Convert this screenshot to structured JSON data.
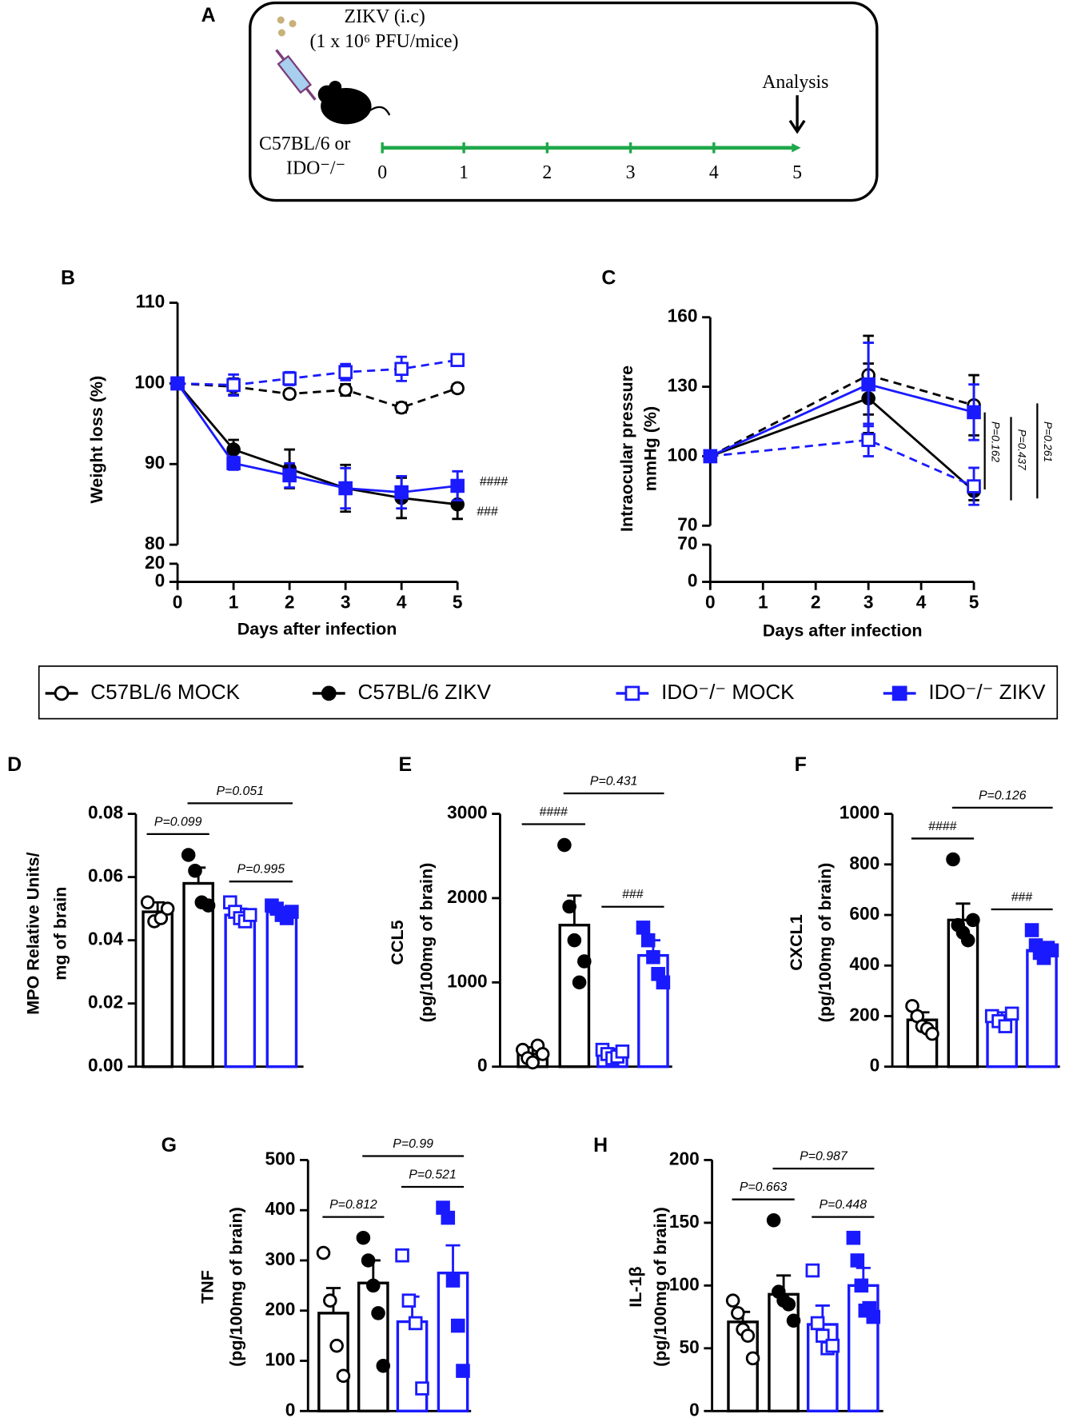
{
  "diagram": {
    "panel": "A",
    "inoculum": "ZIKV (i.c)",
    "dose": "(1 x 10⁶ PFU/mice)",
    "strains": [
      "C57BL/6 or",
      "IDO⁻/⁻"
    ],
    "endpoint": "Analysis",
    "days": [
      "0",
      "1",
      "2",
      "3",
      "4",
      "5"
    ]
  },
  "chart_data": [
    {
      "type": "line",
      "panel": "B",
      "xlabel": "Days after infection",
      "ylabel": [
        "Weight loss (%)"
      ],
      "x": [
        0,
        1,
        2,
        3,
        4,
        5
      ],
      "xlim": [
        0,
        5
      ],
      "xticks": [
        0,
        1,
        2,
        3,
        4,
        5
      ],
      "ylim": [
        80,
        110
      ],
      "yticks": [
        80,
        90,
        100,
        110
      ],
      "ylim_lower": [
        0,
        20
      ],
      "yticks_lower": [
        0,
        20
      ],
      "series": [
        {
          "name": "C57BL/6 MOCK",
          "color": "#000000",
          "marker": "open-circle",
          "dashed": true,
          "values": [
            100,
            99.6,
            98.7,
            99.2,
            97,
            99.4
          ],
          "errors": [
            0,
            1,
            0.5,
            0.7,
            0.6,
            0.5
          ]
        },
        {
          "name": "C57BL/6 ZIKV",
          "color": "#000000",
          "marker": "filled-circle",
          "dashed": false,
          "values": [
            100,
            91.8,
            89.4,
            87,
            85.8,
            85
          ],
          "errors": [
            0,
            1.2,
            2.4,
            2.9,
            2.5,
            1.8
          ]
        },
        {
          "name": "IDO⁻/⁻ MOCK",
          "color": "#1a1aff",
          "marker": "open-square",
          "dashed": true,
          "values": [
            100,
            99.8,
            100.6,
            101.4,
            101.8,
            102.9
          ],
          "errors": [
            0,
            1.3,
            0.8,
            1,
            1.5,
            0.5
          ]
        },
        {
          "name": "IDO⁻/⁻ ZIKV",
          "color": "#1a1aff",
          "marker": "filled-square",
          "dashed": false,
          "values": [
            100,
            90.1,
            88.6,
            87,
            86.5,
            87.3
          ],
          "errors": [
            0,
            0.8,
            1.5,
            2.5,
            2,
            1.8
          ]
        }
      ],
      "annotations": [
        "####",
        "###"
      ]
    },
    {
      "type": "line",
      "panel": "C",
      "xlabel": "Days after infection",
      "ylabel": [
        "Intraocular pressure",
        "mmHg (%)"
      ],
      "x": [
        0,
        3,
        5
      ],
      "xlim": [
        0,
        5
      ],
      "xticks": [
        0,
        1,
        2,
        3,
        4,
        5
      ],
      "ylim": [
        70,
        160
      ],
      "yticks": [
        70,
        100,
        130,
        160
      ],
      "ylim_lower": [
        0,
        70
      ],
      "yticks_lower": [
        0,
        70
      ],
      "series": [
        {
          "color": "#000000",
          "marker": "open-circle",
          "dashed": true,
          "values": [
            100,
            135,
            122
          ],
          "errors": [
            0,
            17,
            13
          ]
        },
        {
          "color": "#000000",
          "marker": "filled-circle",
          "dashed": false,
          "values": [
            100,
            125,
            85
          ],
          "errors": [
            0,
            15,
            4
          ]
        },
        {
          "color": "#1a1aff",
          "marker": "open-square",
          "dashed": true,
          "values": [
            100,
            107,
            87
          ],
          "errors": [
            0,
            7,
            8
          ]
        },
        {
          "color": "#1a1aff",
          "marker": "filled-square",
          "dashed": false,
          "values": [
            100,
            131,
            119
          ],
          "errors": [
            0,
            18,
            12
          ]
        }
      ],
      "annotations": [
        "P=0.162",
        "P=0.437",
        "P=0.261"
      ]
    },
    {
      "type": "bar",
      "panel": "D",
      "ylabel": [
        "MPO Relative Units/",
        "mg of brain"
      ],
      "ylim": [
        0,
        0.08
      ],
      "yticks": [
        {
          "value": 0,
          "label": "0.00"
        },
        {
          "value": 0.02,
          "label": "0.02"
        },
        {
          "value": 0.04,
          "label": "0.04"
        },
        {
          "value": 0.06,
          "label": "0.06"
        },
        {
          "value": 0.08,
          "label": "0.08"
        }
      ],
      "values": [
        0.049,
        0.058,
        0.048,
        0.049
      ],
      "errors": [
        0.003,
        0.005,
        0.002,
        0.0015
      ],
      "points": [
        [
          0.052,
          0.046,
          0.047,
          0.05
        ],
        [
          0.067,
          0.062,
          0.052,
          0.051
        ],
        [
          0.052,
          0.049,
          0.047,
          0.046,
          0.048
        ],
        [
          0.051,
          0.05,
          0.048,
          0.047,
          0.049
        ]
      ],
      "comparisons": [
        {
          "from": 0,
          "to": 1,
          "label": "P=0.099"
        },
        {
          "from": 2,
          "to": 3,
          "label": "P=0.995"
        },
        {
          "from": 1,
          "to": 3,
          "label": "P=0.051"
        }
      ]
    },
    {
      "type": "bar",
      "panel": "E",
      "ylabel": [
        "CCL5",
        "(pg/100mg of brain)"
      ],
      "ylim": [
        0,
        3000
      ],
      "yticks": [
        0,
        1000,
        2000,
        3000
      ],
      "values": [
        150,
        1680,
        150,
        1320
      ],
      "errors": [
        80,
        350,
        60,
        180
      ],
      "points": [
        [
          200,
          100,
          50,
          250,
          150
        ],
        [
          2630,
          1900,
          1500,
          1000,
          1250
        ],
        [
          200,
          150,
          100,
          120,
          180
        ],
        [
          1650,
          1500,
          1300,
          1100,
          1000
        ]
      ],
      "comparisons": [
        {
          "from": 0,
          "to": 1,
          "label": "####"
        },
        {
          "from": 2,
          "to": 3,
          "label": "###"
        },
        {
          "from": 1,
          "to": 3,
          "label": "P=0.431"
        }
      ]
    },
    {
      "type": "bar",
      "panel": "F",
      "ylabel": [
        "CXCL1",
        "(pg/100mg of brain)"
      ],
      "ylim": [
        0,
        1000
      ],
      "yticks": [
        0,
        200,
        400,
        600,
        800,
        1000
      ],
      "values": [
        185,
        580,
        190,
        460
      ],
      "errors": [
        30,
        65,
        25,
        20
      ],
      "points": [
        [
          240,
          200,
          160,
          150,
          130
        ],
        [
          820,
          560,
          530,
          500,
          580
        ],
        [
          200,
          180,
          160,
          210
        ],
        [
          540,
          480,
          450,
          430,
          470,
          460
        ]
      ],
      "comparisons": [
        {
          "from": 0,
          "to": 1,
          "label": "####"
        },
        {
          "from": 2,
          "to": 3,
          "label": "###"
        },
        {
          "from": 1,
          "to": 3,
          "label": "P=0.126"
        }
      ]
    },
    {
      "type": "bar",
      "panel": "G",
      "ylabel": [
        "TNF",
        "(pg/100mg of brain)"
      ],
      "ylim": [
        0,
        500
      ],
      "yticks": [
        0,
        100,
        200,
        300,
        400,
        500
      ],
      "values": [
        195,
        255,
        178,
        275
      ],
      "errors": [
        50,
        45,
        50,
        55
      ],
      "points": [
        [
          315,
          220,
          130,
          70
        ],
        [
          345,
          300,
          250,
          195,
          90
        ],
        [
          310,
          220,
          175,
          45
        ],
        [
          405,
          385,
          260,
          170,
          80
        ]
      ],
      "comparisons": [
        {
          "from": 0,
          "to": 1,
          "label": "P=0.812"
        },
        {
          "from": 2,
          "to": 3,
          "label": "P=0.521"
        },
        {
          "from": 1,
          "to": 3,
          "label": "P=0.99"
        }
      ]
    },
    {
      "type": "bar",
      "panel": "H",
      "ylabel": [
        "IL-1β",
        "(pg/100mg of brain)"
      ],
      "ylim": [
        0,
        200
      ],
      "yticks": [
        0,
        50,
        100,
        150,
        200
      ],
      "values": [
        71,
        93,
        69,
        100
      ],
      "errors": [
        8,
        15,
        15,
        14
      ],
      "points": [
        [
          88,
          78,
          65,
          60,
          42
        ],
        [
          152,
          95,
          88,
          85,
          72
        ],
        [
          112,
          70,
          60,
          50,
          52
        ],
        [
          138,
          120,
          100,
          80,
          82,
          75
        ]
      ],
      "comparisons": [
        {
          "from": 0,
          "to": 1,
          "label": "P=0.663"
        },
        {
          "from": 2,
          "to": 3,
          "label": "P=0.448"
        },
        {
          "from": 1,
          "to": 3,
          "label": "P=0.987"
        }
      ]
    }
  ]
}
